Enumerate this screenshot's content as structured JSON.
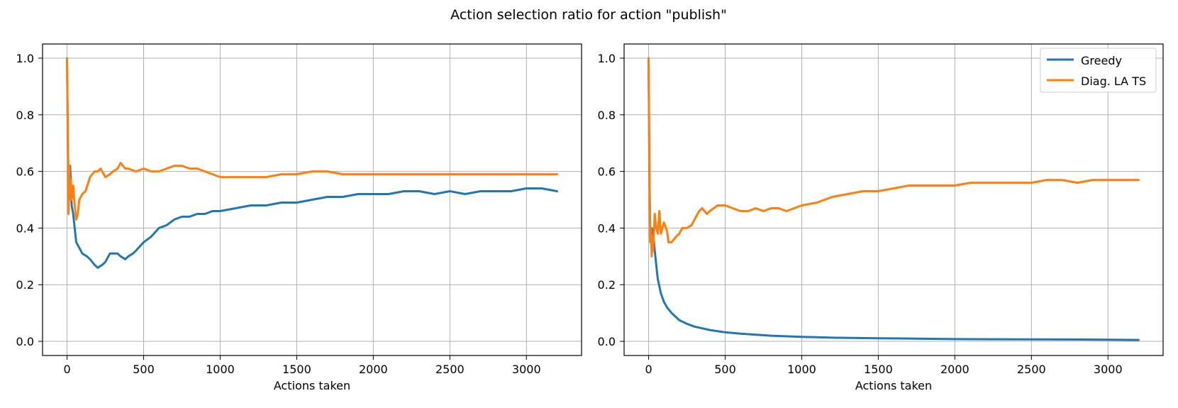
{
  "figure": {
    "title": "Action selection ratio for action \"publish\""
  },
  "legend": {
    "placement": "top-right",
    "entries": [
      {
        "label": "Greedy",
        "color": "#1f77b4"
      },
      {
        "label": "Diag. LA TS",
        "color": "#ff7f0e"
      }
    ]
  },
  "chart_data": [
    {
      "type": "line",
      "title": "",
      "xlabel": "Actions taken",
      "ylabel": "",
      "xlim": [
        -160,
        3360
      ],
      "ylim": [
        -0.05,
        1.05
      ],
      "xticks": [
        0,
        500,
        1000,
        1500,
        2000,
        2500,
        3000
      ],
      "yticks": [
        0.0,
        0.2,
        0.4,
        0.6,
        0.8,
        1.0
      ],
      "xtick_labels": [
        "0",
        "500",
        "1000",
        "1500",
        "2000",
        "2500",
        "3000"
      ],
      "ytick_labels": [
        "0.0",
        "0.2",
        "0.4",
        "0.6",
        "0.8",
        "1.0"
      ],
      "grid": true,
      "legend": false,
      "series": [
        {
          "name": "Greedy",
          "color": "#1f77b4",
          "x": [
            0,
            5,
            10,
            15,
            20,
            30,
            40,
            50,
            60,
            80,
            100,
            130,
            150,
            180,
            200,
            230,
            250,
            280,
            300,
            330,
            350,
            380,
            400,
            430,
            450,
            500,
            550,
            600,
            650,
            700,
            750,
            800,
            850,
            900,
            950,
            1000,
            1100,
            1200,
            1300,
            1400,
            1500,
            1600,
            1700,
            1800,
            1900,
            2000,
            2100,
            2200,
            2300,
            2400,
            2500,
            2600,
            2700,
            2800,
            2900,
            3000,
            3100,
            3200
          ],
          "y": [
            1.0,
            0.72,
            0.55,
            0.5,
            0.62,
            0.48,
            0.45,
            0.4,
            0.35,
            0.33,
            0.31,
            0.3,
            0.29,
            0.27,
            0.26,
            0.27,
            0.28,
            0.31,
            0.31,
            0.31,
            0.3,
            0.29,
            0.3,
            0.31,
            0.32,
            0.35,
            0.37,
            0.4,
            0.41,
            0.43,
            0.44,
            0.44,
            0.45,
            0.45,
            0.46,
            0.46,
            0.47,
            0.48,
            0.48,
            0.49,
            0.49,
            0.5,
            0.51,
            0.51,
            0.52,
            0.52,
            0.52,
            0.53,
            0.53,
            0.52,
            0.53,
            0.52,
            0.53,
            0.53,
            0.53,
            0.54,
            0.54,
            0.53
          ]
        },
        {
          "name": "Diag. LA TS",
          "color": "#ff7f0e",
          "x": [
            0,
            5,
            10,
            15,
            20,
            25,
            30,
            40,
            50,
            60,
            70,
            80,
            100,
            120,
            150,
            180,
            200,
            220,
            250,
            280,
            300,
            330,
            350,
            380,
            400,
            450,
            500,
            550,
            600,
            650,
            700,
            750,
            800,
            850,
            900,
            950,
            1000,
            1100,
            1200,
            1300,
            1400,
            1500,
            1600,
            1700,
            1800,
            1900,
            2000,
            2100,
            2200,
            2300,
            2400,
            2500,
            2600,
            2700,
            2800,
            2900,
            3000,
            3100,
            3200
          ],
          "y": [
            1.0,
            0.75,
            0.45,
            0.62,
            0.5,
            0.57,
            0.5,
            0.55,
            0.48,
            0.43,
            0.45,
            0.5,
            0.52,
            0.53,
            0.58,
            0.6,
            0.6,
            0.61,
            0.58,
            0.59,
            0.6,
            0.61,
            0.63,
            0.61,
            0.61,
            0.6,
            0.61,
            0.6,
            0.6,
            0.61,
            0.62,
            0.62,
            0.61,
            0.61,
            0.6,
            0.59,
            0.58,
            0.58,
            0.58,
            0.58,
            0.59,
            0.59,
            0.6,
            0.6,
            0.59,
            0.59,
            0.59,
            0.59,
            0.59,
            0.59,
            0.59,
            0.59,
            0.59,
            0.59,
            0.59,
            0.59,
            0.59,
            0.59,
            0.59
          ]
        }
      ]
    },
    {
      "type": "line",
      "title": "",
      "xlabel": "Actions taken",
      "ylabel": "",
      "xlim": [
        -160,
        3360
      ],
      "ylim": [
        -0.05,
        1.05
      ],
      "xticks": [
        0,
        500,
        1000,
        1500,
        2000,
        2500,
        3000
      ],
      "yticks": [
        0.0,
        0.2,
        0.4,
        0.6,
        0.8,
        1.0
      ],
      "xtick_labels": [
        "0",
        "500",
        "1000",
        "1500",
        "2000",
        "2500",
        "3000"
      ],
      "ytick_labels": [
        "0.0",
        "0.2",
        "0.4",
        "0.6",
        "0.8",
        "1.0"
      ],
      "grid": true,
      "legend": true,
      "series": [
        {
          "name": "Greedy",
          "color": "#1f77b4",
          "x": [
            0,
            5,
            10,
            15,
            20,
            30,
            40,
            50,
            60,
            80,
            100,
            120,
            150,
            200,
            250,
            300,
            400,
            500,
            600,
            800,
            1000,
            1200,
            1500,
            2000,
            2500,
            3000,
            3200
          ],
          "y": [
            1.0,
            0.6,
            0.4,
            0.4,
            0.4,
            0.38,
            0.32,
            0.27,
            0.22,
            0.17,
            0.14,
            0.12,
            0.1,
            0.075,
            0.062,
            0.052,
            0.04,
            0.032,
            0.027,
            0.02,
            0.016,
            0.013,
            0.011,
            0.008,
            0.007,
            0.006,
            0.005
          ]
        },
        {
          "name": "Diag. LA TS",
          "color": "#ff7f0e",
          "x": [
            0,
            5,
            10,
            15,
            20,
            25,
            30,
            40,
            50,
            60,
            70,
            80,
            100,
            120,
            130,
            150,
            180,
            200,
            220,
            250,
            280,
            300,
            330,
            350,
            380,
            400,
            450,
            500,
            550,
            600,
            650,
            700,
            750,
            800,
            850,
            900,
            950,
            1000,
            1100,
            1200,
            1300,
            1400,
            1500,
            1600,
            1700,
            1800,
            1900,
            2000,
            2100,
            2200,
            2300,
            2400,
            2500,
            2600,
            2700,
            2800,
            2900,
            3000,
            3100,
            3200
          ],
          "y": [
            1.0,
            0.65,
            0.35,
            0.4,
            0.3,
            0.36,
            0.32,
            0.45,
            0.4,
            0.38,
            0.46,
            0.38,
            0.42,
            0.39,
            0.35,
            0.35,
            0.37,
            0.38,
            0.4,
            0.4,
            0.41,
            0.43,
            0.46,
            0.47,
            0.45,
            0.46,
            0.48,
            0.48,
            0.47,
            0.46,
            0.46,
            0.47,
            0.46,
            0.47,
            0.47,
            0.46,
            0.47,
            0.48,
            0.49,
            0.51,
            0.52,
            0.53,
            0.53,
            0.54,
            0.55,
            0.55,
            0.55,
            0.55,
            0.56,
            0.56,
            0.56,
            0.56,
            0.56,
            0.57,
            0.57,
            0.56,
            0.57,
            0.57,
            0.57,
            0.57
          ]
        }
      ]
    }
  ]
}
